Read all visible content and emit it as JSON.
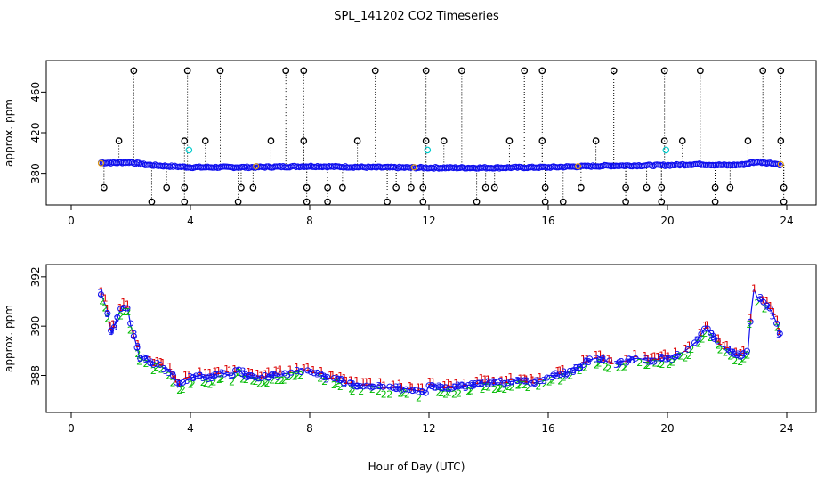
{
  "title": "SPL_141202  CO2 Timeseries",
  "xlabel": "Hour of Day (UTC)",
  "chart_data": [
    {
      "type": "scatter",
      "title": "SPL_141202  CO2 Timeseries",
      "ylabel": "approx. ppm",
      "xlabel": "",
      "xlim": [
        0,
        24
      ],
      "ylim": [
        349,
        491
      ],
      "xticks": [
        0,
        4,
        8,
        12,
        16,
        20,
        24
      ],
      "yticks": [
        380,
        420,
        460
      ],
      "baseline": {
        "name": "main",
        "color": "#1010ee",
        "x": [
          1.0,
          1.5,
          2.0,
          2.5,
          3.0,
          4.0,
          6.0,
          8.0,
          10.0,
          12.0,
          14.0,
          16.0,
          18.0,
          20.0,
          21.0,
          22.0,
          22.5,
          23.0,
          23.5,
          23.8
        ],
        "y": [
          390.5,
          390.5,
          391,
          388.5,
          387.5,
          386,
          386,
          387,
          386,
          385.5,
          385.5,
          386,
          387.5,
          388,
          389,
          388,
          388.5,
          391.5,
          390,
          388.5
        ]
      },
      "spikes_high": {
        "color": "#000000",
        "value": 481,
        "x": [
          2.1,
          3.9,
          5.0,
          7.2,
          7.8,
          10.2,
          11.9,
          13.1,
          15.2,
          15.8,
          18.2,
          19.9,
          21.1,
          23.2,
          23.8
        ]
      },
      "spikes_mid": {
        "color": "#000000",
        "value": 412,
        "x": [
          1.6,
          3.8,
          4.5,
          6.7,
          7.8,
          9.6,
          11.9,
          12.5,
          14.7,
          15.8,
          17.6,
          19.9,
          20.5,
          22.7,
          23.8
        ]
      },
      "spikes_low": {
        "color": "#000000",
        "value": 366,
        "x": [
          1.1,
          3.2,
          3.8,
          5.7,
          6.1,
          7.9,
          8.6,
          9.1,
          10.9,
          11.4,
          11.8,
          13.9,
          14.2,
          15.9,
          17.1,
          18.6,
          19.3,
          19.8,
          21.6,
          22.1,
          23.9
        ]
      },
      "spikes_bottom": {
        "color": "#000000",
        "value": 352,
        "x": [
          2.7,
          3.8,
          5.6,
          7.9,
          8.6,
          10.6,
          11.8,
          13.6,
          15.9,
          16.5,
          18.6,
          19.8,
          21.6,
          23.9
        ]
      },
      "cyan_points": {
        "color": "#00cccc",
        "x": [
          3.95,
          11.95,
          19.95
        ],
        "y": [
          403,
          403,
          403
        ]
      },
      "orange_points": {
        "color": "#e8a000",
        "x": [
          1.0,
          6.2,
          11.5,
          17.0,
          23.8
        ],
        "y": [
          390,
          387,
          386,
          387,
          389
        ]
      }
    },
    {
      "type": "scatter",
      "title": "",
      "ylabel": "approx. ppm",
      "xlabel": "Hour of Day (UTC)",
      "xlim": [
        0,
        24
      ],
      "ylim": [
        386.5,
        392.5
      ],
      "xticks": [
        0,
        4,
        8,
        12,
        16,
        20,
        24
      ],
      "yticks": [
        388,
        390,
        392
      ],
      "series": [
        {
          "name": "1",
          "symbol": "1",
          "color": "#dd0000",
          "offset": 0.15
        },
        {
          "name": "2",
          "symbol": "2",
          "color": "#00bb00",
          "offset": -0.2
        },
        {
          "name": "3",
          "symbol": "3",
          "color": "#1010ee",
          "offset": 0.0
        }
      ],
      "line": {
        "color": "#1010ee",
        "x": [
          1.0,
          1.2,
          1.35,
          1.5,
          1.7,
          1.9,
          2.0,
          2.15,
          2.3,
          2.5,
          2.7,
          2.9,
          3.1,
          3.3,
          3.5,
          3.6,
          3.75,
          3.85,
          4.0,
          4.3,
          4.6,
          5.0,
          5.4,
          5.6,
          5.8,
          6.2,
          6.8,
          7.3,
          7.8,
          8.2,
          8.6,
          9.0,
          9.5,
          10.0,
          10.5,
          11.0,
          11.5,
          11.9,
          12.0,
          12.3,
          12.8,
          13.3,
          13.8,
          14.5,
          15.0,
          15.5,
          15.9,
          16.0,
          16.3,
          16.6,
          17.0,
          17.3,
          17.6,
          17.9,
          18.2,
          18.6,
          19.0,
          19.4,
          19.8,
          20.0,
          20.3,
          20.6,
          21.0,
          21.2,
          21.3,
          21.5,
          21.8,
          22.1,
          22.3,
          22.5,
          22.7,
          22.8,
          22.9,
          23.0,
          23.2,
          23.5,
          23.7,
          23.8
        ],
        "y": [
          391.3,
          390.7,
          389.7,
          390.2,
          390.8,
          390.7,
          390.0,
          389.4,
          388.7,
          388.8,
          388.4,
          388.5,
          388.3,
          388.2,
          387.8,
          387.6,
          387.7,
          387.8,
          387.9,
          388.0,
          387.9,
          388.1,
          388.0,
          388.3,
          388.0,
          387.9,
          388.0,
          388.1,
          388.2,
          388.1,
          387.9,
          387.8,
          387.6,
          387.6,
          387.5,
          387.5,
          387.4,
          387.3,
          387.6,
          387.5,
          387.5,
          387.6,
          387.7,
          387.7,
          387.8,
          387.7,
          387.8,
          388.0,
          388.0,
          388.1,
          388.3,
          388.6,
          388.7,
          388.6,
          388.5,
          388.6,
          388.7,
          388.6,
          388.7,
          388.7,
          388.8,
          389.0,
          389.4,
          389.8,
          390.0,
          389.6,
          389.2,
          389.0,
          388.8,
          388.8,
          389.0,
          390.5,
          391.5,
          391.2,
          391.0,
          390.6,
          390.0,
          389.6
        ]
      }
    }
  ]
}
